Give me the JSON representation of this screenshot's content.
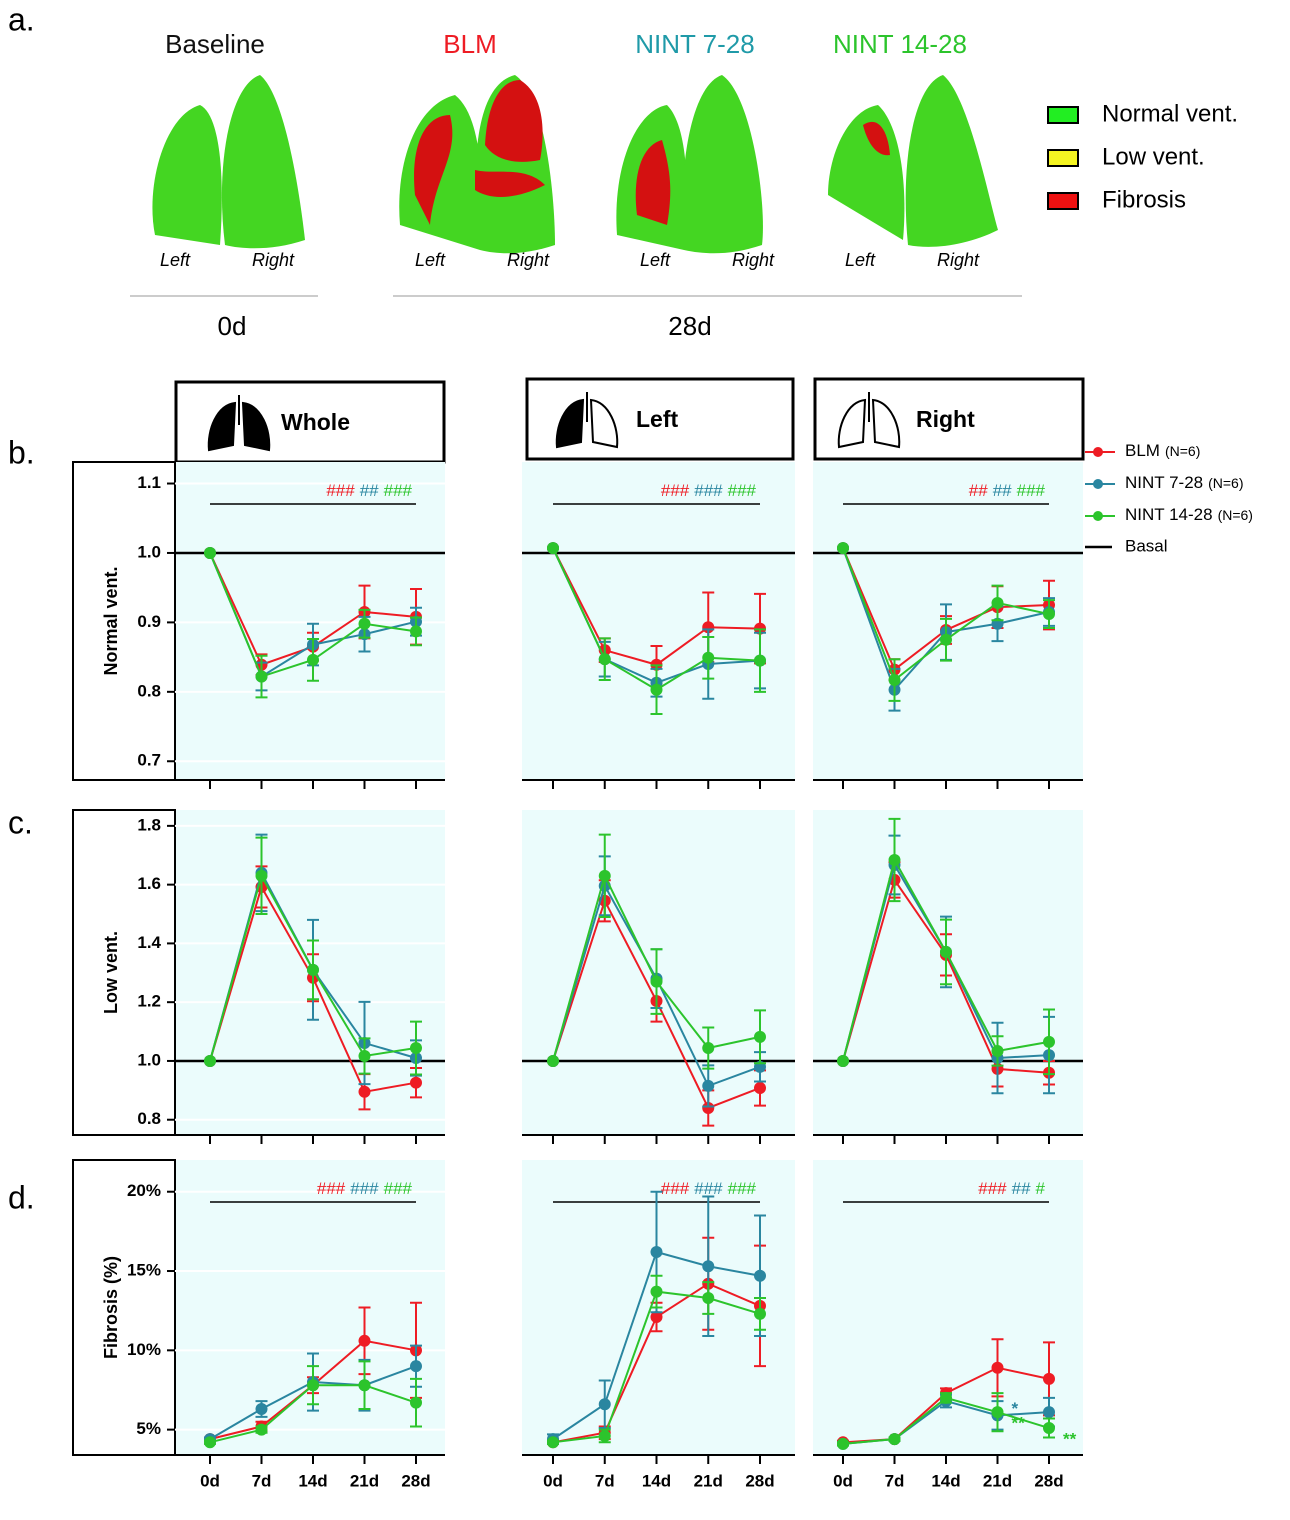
{
  "panel_labels": [
    "a.",
    "b.",
    "c.",
    "d."
  ],
  "panel_a": {
    "groups": [
      {
        "title": "Baseline",
        "color": "#111111"
      },
      {
        "title": "BLM",
        "color": "#ee1c24"
      },
      {
        "title": "NINT 7-28",
        "color": "#1f9aa8"
      },
      {
        "title": "NINT 14-28",
        "color": "#2cc42c"
      }
    ],
    "side_labels": [
      "Left",
      "Right"
    ],
    "timepoints": [
      "0d",
      "28d"
    ],
    "legend": [
      {
        "label": "Normal vent.",
        "color": "#22ee22"
      },
      {
        "label": "Low vent.",
        "color": "#f5f522"
      },
      {
        "label": "Fibrosis",
        "color": "#ee1111"
      }
    ]
  },
  "headers": [
    "Whole",
    "Left",
    "Right"
  ],
  "legend": {
    "n_labels": [
      "(N=6)",
      "(N=6)",
      "(N=6)"
    ],
    "basal": "Basal"
  },
  "chart_data": [
    {
      "type": "line",
      "ylabel": "Normal vent.",
      "ylim": [
        0.673,
        1.131
      ],
      "yticks": [
        0.7,
        0.8,
        0.9,
        {
          "value": 1,
          "label": "1.0"
        },
        1.1
      ],
      "basal": 1,
      "sig": [
        {
          "text": "###",
          "color": "#ee1c24"
        },
        {
          "text": "##",
          "color": "#2a86a0"
        },
        {
          "text": "###",
          "color": "#2cc42c"
        }
      ],
      "series": [
        {
          "name": "BLM",
          "color": "#ee1c24",
          "values": [
            1,
            0.839,
            0.865,
            0.915,
            0.908
          ],
          "errors": [
            0,
            0.015,
            0.02,
            0.038,
            0.04
          ]
        },
        {
          "name": "NINT 7-28",
          "color": "#2a86a0",
          "values": [
            1,
            0.822,
            0.868,
            0.883,
            0.901
          ],
          "errors": [
            0,
            0.02,
            0.03,
            0.025,
            0.02
          ]
        },
        {
          "name": "NINT 14-28",
          "color": "#2cc42c",
          "values": [
            1,
            0.822,
            0.846,
            0.898,
            0.887
          ],
          "errors": [
            0,
            0.03,
            0.03,
            0.02,
            0.02
          ]
        }
      ]
    },
    {
      "type": "line",
      "ylim": [
        0.673,
        1.131
      ],
      "basal": 1,
      "sig": [
        {
          "text": "###",
          "color": "#ee1c24"
        },
        {
          "text": "###",
          "color": "#2a86a0"
        },
        {
          "text": "###",
          "color": "#2cc42c"
        }
      ],
      "series": [
        {
          "name": "BLM",
          "color": "#ee1c24",
          "values": [
            1.007,
            0.86,
            0.839,
            0.893,
            0.891
          ],
          "errors": [
            0,
            0.017,
            0.027,
            0.05,
            0.05
          ]
        },
        {
          "name": "NINT 7-28",
          "color": "#2a86a0",
          "values": [
            1.007,
            0.847,
            0.813,
            0.84,
            0.845
          ],
          "errors": [
            0,
            0.025,
            0.02,
            0.05,
            0.04
          ]
        },
        {
          "name": "NINT 14-28",
          "color": "#2cc42c",
          "values": [
            1.007,
            0.847,
            0.803,
            0.849,
            0.845
          ],
          "errors": [
            0,
            0.03,
            0.035,
            0.03,
            0.045
          ]
        }
      ]
    },
    {
      "type": "line",
      "ylim": [
        0.673,
        1.131
      ],
      "basal": 1,
      "sig": [
        {
          "text": "##",
          "color": "#ee1c24"
        },
        {
          "text": "##",
          "color": "#2a86a0"
        },
        {
          "text": "###",
          "color": "#2cc42c"
        }
      ],
      "series": [
        {
          "name": "BLM",
          "color": "#ee1c24",
          "values": [
            1.007,
            0.832,
            0.889,
            0.922,
            0.925
          ],
          "errors": [
            0,
            0.015,
            0.02,
            0.03,
            0.035
          ]
        },
        {
          "name": "NINT 7-28",
          "color": "#2a86a0",
          "values": [
            1.007,
            0.803,
            0.886,
            0.898,
            0.915
          ],
          "errors": [
            0,
            0.03,
            0.04,
            0.025,
            0.02
          ]
        },
        {
          "name": "NINT 14-28",
          "color": "#2cc42c",
          "values": [
            1.007,
            0.817,
            0.875,
            0.928,
            0.912
          ],
          "errors": [
            0,
            0.03,
            0.03,
            0.025,
            0.02
          ]
        }
      ]
    },
    {
      "type": "line",
      "ylabel": "Low vent.",
      "ylim": [
        0.748,
        1.854
      ],
      "yticks": [
        0.8,
        {
          "value": 1,
          "label": "1.0"
        },
        1.2,
        1.4,
        1.6,
        1.8
      ],
      "basal": 1,
      "series": [
        {
          "name": "BLM",
          "color": "#ee1c24",
          "values": [
            1,
            1.592,
            1.283,
            0.895,
            0.926
          ],
          "errors": [
            0,
            0.07,
            0.08,
            0.06,
            0.05
          ]
        },
        {
          "name": "NINT 7-28",
          "color": "#2a86a0",
          "values": [
            1,
            1.64,
            1.31,
            1.061,
            1.01
          ],
          "errors": [
            0,
            0.13,
            0.17,
            0.14,
            0.06
          ]
        },
        {
          "name": "NINT 14-28",
          "color": "#2cc42c",
          "values": [
            1,
            1.63,
            1.31,
            1.017,
            1.044
          ],
          "errors": [
            0,
            0.13,
            0.1,
            0.06,
            0.09
          ]
        }
      ]
    },
    {
      "type": "line",
      "ylim": [
        0.748,
        1.854
      ],
      "basal": 1,
      "series": [
        {
          "name": "BLM",
          "color": "#ee1c24",
          "values": [
            1,
            1.545,
            1.204,
            0.84,
            0.908
          ],
          "errors": [
            0,
            0.07,
            0.07,
            0.06,
            0.06
          ]
        },
        {
          "name": "NINT 7-28",
          "color": "#2a86a0",
          "values": [
            1,
            1.596,
            1.28,
            0.915,
            0.98
          ],
          "errors": [
            0,
            0.1,
            0.1,
            0.07,
            0.05
          ]
        },
        {
          "name": "NINT 14-28",
          "color": "#2cc42c",
          "values": [
            1,
            1.63,
            1.27,
            1.044,
            1.082
          ],
          "errors": [
            0,
            0.14,
            0.11,
            0.07,
            0.09
          ]
        }
      ]
    },
    {
      "type": "line",
      "ylim": [
        0.748,
        1.854
      ],
      "basal": 1,
      "series": [
        {
          "name": "BLM",
          "color": "#ee1c24",
          "values": [
            1,
            1.616,
            1.361,
            0.973,
            0.96
          ],
          "errors": [
            0,
            0.06,
            0.07,
            0.06,
            0.04
          ]
        },
        {
          "name": "NINT 7-28",
          "color": "#2a86a0",
          "values": [
            1,
            1.667,
            1.371,
            1.01,
            1.02
          ],
          "errors": [
            0,
            0.1,
            0.12,
            0.12,
            0.13
          ]
        },
        {
          "name": "NINT 14-28",
          "color": "#2cc42c",
          "values": [
            1,
            1.684,
            1.371,
            1.034,
            1.065
          ],
          "errors": [
            0,
            0.14,
            0.11,
            0.05,
            0.11
          ]
        }
      ]
    },
    {
      "type": "line",
      "ylabel": "Fibrosis (%)",
      "ylim": [
        3.4,
        22
      ],
      "yticks": [
        {
          "value": 5,
          "label": "5%"
        },
        {
          "value": 10,
          "label": "10%"
        },
        {
          "value": 15,
          "label": "15%"
        },
        {
          "value": 20,
          "label": "20%"
        }
      ],
      "categories": [
        "0d",
        "7d",
        "14d",
        "21d",
        "28d"
      ],
      "sig": [
        {
          "text": "###",
          "color": "#ee1c24"
        },
        {
          "text": "###",
          "color": "#2a86a0"
        },
        {
          "text": "###",
          "color": "#2cc42c"
        }
      ],
      "series": [
        {
          "name": "BLM",
          "color": "#ee1c24",
          "values": [
            4.4,
            5.2,
            7.8,
            10.6,
            10
          ],
          "errors": [
            0.1,
            0.3,
            0.5,
            2.1,
            3
          ]
        },
        {
          "name": "NINT 7-28",
          "color": "#2a86a0",
          "values": [
            4.4,
            6.3,
            8,
            7.8,
            9
          ],
          "errors": [
            0.1,
            0.5,
            1.8,
            1.6,
            1.3
          ]
        },
        {
          "name": "NINT 14-28",
          "color": "#2cc42c",
          "values": [
            4.2,
            5,
            7.8,
            7.8,
            6.7
          ],
          "errors": [
            0.1,
            0.2,
            1.2,
            1.5,
            1.5
          ]
        }
      ]
    },
    {
      "type": "line",
      "ylim": [
        3.4,
        22
      ],
      "categories": [
        "0d",
        "7d",
        "14d",
        "21d",
        "28d"
      ],
      "sig": [
        {
          "text": "###",
          "color": "#ee1c24"
        },
        {
          "text": "###",
          "color": "#2a86a0"
        },
        {
          "text": "###",
          "color": "#2cc42c"
        }
      ],
      "series": [
        {
          "name": "BLM",
          "color": "#ee1c24",
          "values": [
            4.2,
            4.8,
            12.1,
            14.2,
            12.8
          ],
          "errors": [
            0.1,
            0.4,
            0.9,
            2.9,
            3.8
          ]
        },
        {
          "name": "NINT 7-28",
          "color": "#2a86a0",
          "values": [
            4.4,
            6.6,
            16.2,
            15.3,
            14.7
          ],
          "errors": [
            0.3,
            1.5,
            3.8,
            4.4,
            3.8
          ]
        },
        {
          "name": "NINT 14-28",
          "color": "#2cc42c",
          "values": [
            4.2,
            4.6,
            13.7,
            13.3,
            12.3
          ],
          "errors": [
            0.1,
            0.4,
            1,
            1,
            1
          ]
        }
      ]
    },
    {
      "type": "line",
      "ylim": [
        3.4,
        22
      ],
      "categories": [
        "0d",
        "7d",
        "14d",
        "21d",
        "28d"
      ],
      "sig": [
        {
          "text": "###",
          "color": "#ee1c24"
        },
        {
          "text": "##",
          "color": "#2a86a0"
        },
        {
          "text": "#",
          "color": "#2cc42c"
        }
      ],
      "series": [
        {
          "name": "BLM",
          "color": "#ee1c24",
          "values": [
            4.2,
            4.4,
            7.3,
            8.9,
            8.2
          ],
          "errors": [
            0.1,
            0.1,
            0.3,
            1.8,
            2.3
          ]
        },
        {
          "name": "NINT 7-28",
          "color": "#2a86a0",
          "values": [
            4.1,
            4.4,
            6.8,
            5.9,
            6.1
          ],
          "errors": [
            0.1,
            0.1,
            0.4,
            0.9,
            0.9
          ],
          "point_labels": [
            null,
            null,
            null,
            "*",
            null
          ]
        },
        {
          "name": "NINT 14-28",
          "color": "#2cc42c",
          "values": [
            4.1,
            4.4,
            7,
            6.1,
            5.1
          ],
          "errors": [
            0.1,
            0.1,
            0.3,
            1.2,
            0.6
          ],
          "point_labels": [
            null,
            null,
            null,
            "**",
            "**"
          ]
        }
      ]
    }
  ]
}
